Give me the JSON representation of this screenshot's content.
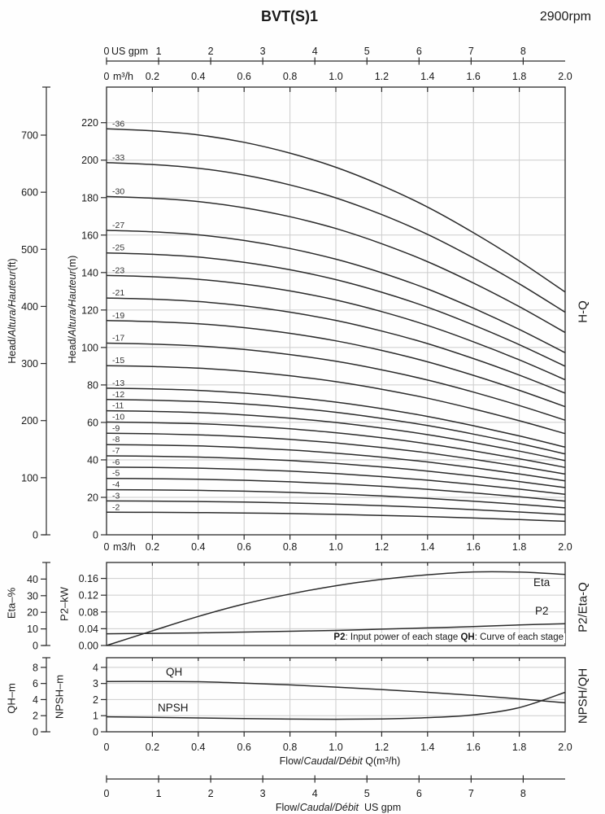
{
  "header": {
    "title": "BVT(S)1",
    "rpm": "2900rpm"
  },
  "top_axis": {
    "gpm": {
      "unit": "US gpm",
      "ticks": [
        0,
        1,
        2,
        3,
        4,
        5,
        6,
        7,
        8
      ]
    },
    "m3h": {
      "zero": "0",
      "unit": "m³/h",
      "ticks": [
        "0.2",
        "0.4",
        "0.6",
        "0.8",
        "1.0",
        "1.2",
        "1.4",
        "1.6",
        "1.8",
        "2.0"
      ]
    }
  },
  "main_panel": {
    "right_label": "H-Q",
    "y_axis_ft": {
      "label_upright": "Head/",
      "label_italic": "Altura/Hauteur",
      "label_unit": "(ft)",
      "ticks": [
        0,
        100,
        200,
        300,
        400,
        500,
        600,
        700
      ]
    },
    "y_axis_m": {
      "label_upright": "Head/",
      "label_italic": "Altura/Hauteur",
      "label_unit": "(m)",
      "ticks": [
        0,
        20,
        40,
        60,
        80,
        100,
        120,
        140,
        160,
        180,
        200,
        220
      ]
    },
    "x_axis_bottom": {
      "zero": "0",
      "unit": "m3/h",
      "ticks": [
        "0.2",
        "0.4",
        "0.6",
        "0.8",
        "1.0",
        "1.2",
        "1.4",
        "1.6",
        "1.8",
        "2.0"
      ]
    }
  },
  "mid_panel": {
    "right_label": "P2/Eta-Q",
    "eta_axis": {
      "label": "Eta–%",
      "ticks": [
        0,
        10,
        20,
        30,
        40
      ]
    },
    "p2_axis": {
      "label": "P2–kW",
      "ticks": [
        "0.00",
        "0.04",
        "0.08",
        "0.12",
        "0.16"
      ]
    },
    "curve_labels": {
      "eta": "Eta",
      "p2": "P2"
    },
    "note": {
      "b1": "P2",
      "t1": ": Input power of each stage ",
      "b2": "QH",
      "t2": ": Curve of each stage"
    }
  },
  "bot_panel": {
    "right_label": "NPSH/QH",
    "qh_axis": {
      "label": "QH–m",
      "ticks": [
        0,
        2,
        4,
        6,
        8
      ]
    },
    "npsh_axis": {
      "label": "NPSH–m",
      "ticks": [
        0,
        1,
        2,
        3,
        4
      ]
    },
    "curve_labels": {
      "qh": "QH",
      "npsh": "NPSH"
    },
    "x_axis": {
      "ticks": [
        "0",
        "0.2",
        "0.4",
        "0.6",
        "0.8",
        "1.0",
        "1.2",
        "1.4",
        "1.6",
        "1.8",
        "2.0"
      ],
      "label_upright": "Flow/",
      "label_italic": "Caudal/Débit",
      "label_unit": " Q(m³/h)"
    }
  },
  "gpm_axis_bottom": {
    "ticks": [
      0,
      1,
      2,
      3,
      4,
      5,
      6,
      7,
      8
    ],
    "label_upright": "Flow/",
    "label_italic": "Caudal/Débit",
    "label_unit": "  US gpm"
  },
  "chart_data": [
    {
      "type": "line",
      "title": "H-Q",
      "xlabel": "Flow Q (m3/h)",
      "ylabel": "Head (m)",
      "xlim": [
        0,
        2.0
      ],
      "ylim_m": [
        0,
        239
      ],
      "x_m3h": [
        0,
        0.2,
        0.4,
        0.6,
        0.8,
        1.0,
        1.2,
        1.4,
        1.6,
        1.8,
        2.0
      ],
      "per_stage_head_m": [
        6.02,
        5.99,
        5.93,
        5.82,
        5.66,
        5.45,
        5.18,
        4.86,
        4.48,
        4.06,
        3.6
      ],
      "stages": [
        36,
        33,
        30,
        27,
        25,
        23,
        21,
        19,
        17,
        15,
        13,
        12,
        11,
        10,
        9,
        8,
        7,
        6,
        5,
        4,
        3,
        2
      ],
      "labels": [
        "-36",
        "-33",
        "-30",
        "-27",
        "-25",
        "-23",
        "-21",
        "-19",
        "-17",
        "-15",
        "-13",
        "-12",
        "-11",
        "-10",
        "-9",
        "-8",
        "-7",
        "-6",
        "-5",
        "-4",
        "-3",
        "-2"
      ]
    },
    {
      "type": "line",
      "title": "P2/Eta-Q",
      "x_m3h": [
        0,
        0.2,
        0.4,
        0.6,
        0.8,
        1.0,
        1.2,
        1.4,
        1.6,
        1.8,
        2.0
      ],
      "series": [
        {
          "name": "Eta",
          "unit": "%",
          "ylim": [
            0,
            50
          ],
          "values": [
            0,
            8.8,
            17.5,
            25.0,
            31.0,
            36.0,
            39.8,
            42.6,
            44.3,
            44.2,
            42.8
          ]
        },
        {
          "name": "P2",
          "unit": "kW",
          "ylim": [
            0,
            0.198
          ],
          "values": [
            0.028,
            0.029,
            0.03,
            0.032,
            0.034,
            0.036,
            0.039,
            0.042,
            0.045,
            0.049,
            0.052
          ]
        }
      ]
    },
    {
      "type": "line",
      "title": "NPSH/QH",
      "x_m3h": [
        0,
        0.2,
        0.4,
        0.6,
        0.8,
        1.0,
        1.2,
        1.4,
        1.6,
        1.8,
        2.0
      ],
      "series": [
        {
          "name": "QH",
          "unit": "m",
          "ylim": [
            0,
            9.2
          ],
          "values": [
            6.25,
            6.25,
            6.22,
            6.05,
            5.82,
            5.55,
            5.25,
            4.9,
            4.52,
            4.08,
            3.6
          ]
        },
        {
          "name": "NPSH",
          "unit": "m",
          "ylim": [
            0,
            4.6
          ],
          "values": [
            0.93,
            0.9,
            0.86,
            0.82,
            0.79,
            0.78,
            0.8,
            0.88,
            1.05,
            1.5,
            2.45
          ]
        }
      ]
    }
  ]
}
